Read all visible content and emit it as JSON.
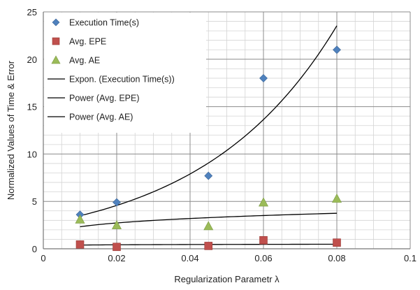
{
  "chart_data": {
    "type": "scatter",
    "xlabel": "Regularization Parametr λ",
    "ylabel": "Normalized Values of Time & Error",
    "xlim": [
      0,
      0.1
    ],
    "ylim": [
      0,
      25
    ],
    "x_ticks": [
      0,
      0.02,
      0.04,
      0.06,
      0.08,
      0.1
    ],
    "x_tick_labels": [
      "0",
      "0.02",
      "0.04",
      "0.06",
      "0.08",
      "0.1"
    ],
    "y_ticks": [
      0,
      5,
      10,
      15,
      20,
      25
    ],
    "y_tick_labels": [
      "0",
      "5",
      "10",
      "15",
      "20",
      "25"
    ],
    "grid": true,
    "legend_position": "top-left",
    "series": [
      {
        "name": "Execution Time(s)",
        "marker": "diamond",
        "color": "#4F81BD",
        "x": [
          0.01,
          0.02,
          0.045,
          0.06,
          0.08
        ],
        "y": [
          3.6,
          4.9,
          7.7,
          18.0,
          21.0
        ]
      },
      {
        "name": "Avg. EPE",
        "marker": "square",
        "color": "#C0504D",
        "x": [
          0.01,
          0.02,
          0.045,
          0.06,
          0.08
        ],
        "y": [
          0.45,
          0.2,
          0.3,
          0.9,
          0.65
        ]
      },
      {
        "name": "Avg. AE",
        "marker": "triangle",
        "color": "#9BBB59",
        "x": [
          0.01,
          0.02,
          0.045,
          0.06,
          0.08
        ],
        "y": [
          3.1,
          2.5,
          2.4,
          4.9,
          5.3
        ]
      }
    ],
    "trendlines": [
      {
        "name": "Expon. (Execution Time(s))",
        "type": "exponential",
        "color": "#000000",
        "a": 2.65,
        "b": 27.3,
        "x_range": [
          0.01,
          0.08
        ]
      },
      {
        "name": "Power (Avg. EPE)",
        "type": "power",
        "color": "#000000",
        "a": 0.62,
        "b": 0.1,
        "x_range": [
          0.01,
          0.08
        ]
      },
      {
        "name": "Power (Avg. AE)",
        "type": "power",
        "color": "#000000",
        "a": 6.7,
        "b": 0.23,
        "x_range": [
          0.01,
          0.08
        ]
      }
    ]
  }
}
